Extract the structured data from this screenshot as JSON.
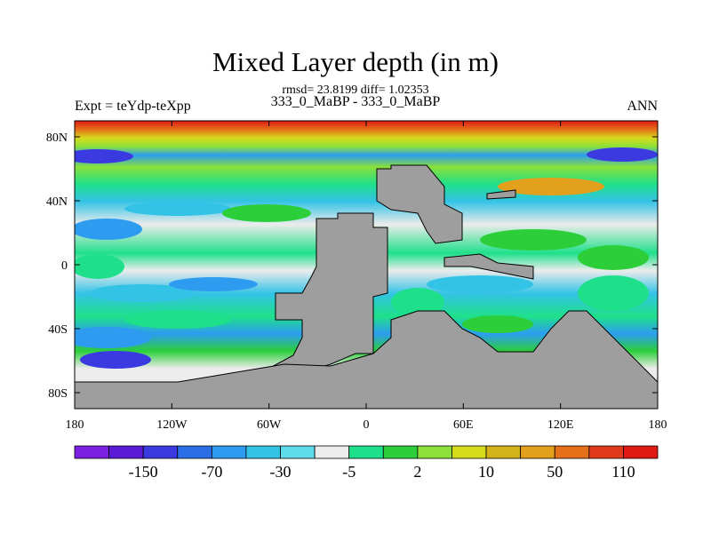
{
  "chart_data": {
    "type": "heatmap",
    "title": "Mixed Layer depth (in m)",
    "stats_line": "rmsd= 23.8199 diff= 1.02353",
    "subtitle": "333_0_MaBP - 333_0_MaBP",
    "left_label": "Expt = teYdp-teXpp",
    "right_label": "ANN",
    "x_ticks": [
      "180",
      "120W",
      "60W",
      "0",
      "60E",
      "120E",
      "180"
    ],
    "x_tick_values": [
      -180,
      -120,
      -60,
      0,
      60,
      120,
      180
    ],
    "y_ticks": [
      "80N",
      "40N",
      "0",
      "40S",
      "80S"
    ],
    "y_tick_values": [
      80,
      40,
      0,
      -40,
      -80
    ],
    "xlim": [
      -180,
      180
    ],
    "ylim": [
      -90,
      90
    ],
    "colorbar": {
      "labels": [
        "-150",
        "-70",
        "-30",
        "-5",
        "2",
        "10",
        "50",
        "110"
      ],
      "colors": [
        "#7b1fe0",
        "#5b1bd6",
        "#3a3ae0",
        "#2a6ee8",
        "#2d9cf0",
        "#33c3e6",
        "#5fdcec",
        "#ececec",
        "#1fe08a",
        "#2ccf3a",
        "#8be03a",
        "#d6dc1c",
        "#d4b318",
        "#e3a01c",
        "#e6701a",
        "#e03a1a",
        "#e01a12"
      ]
    },
    "land_color": "#9e9e9e"
  }
}
